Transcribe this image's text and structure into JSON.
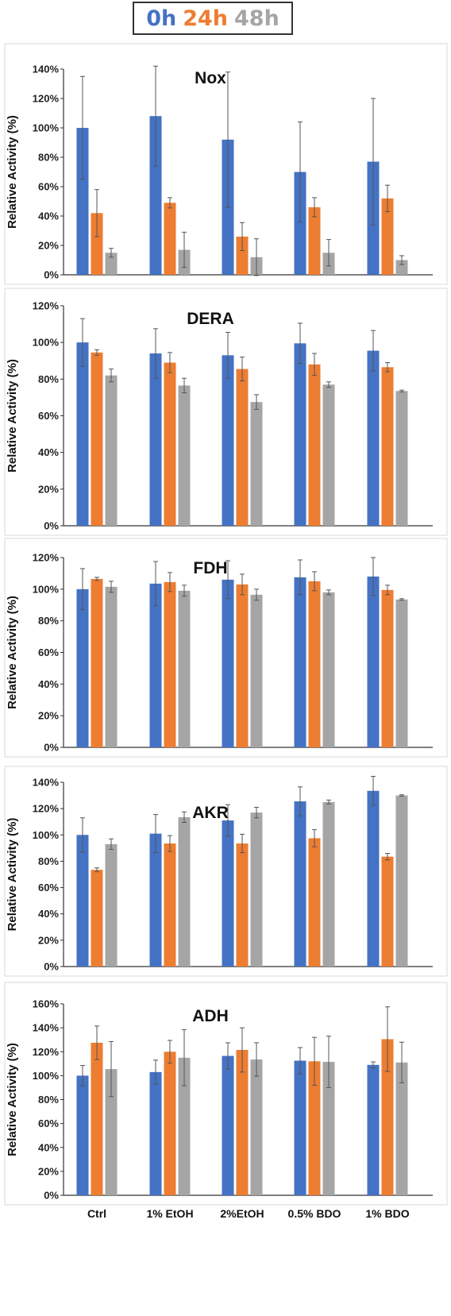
{
  "legend": [
    {
      "label": "0h",
      "color": "#4472C4"
    },
    {
      "label": "24h",
      "color": "#ED7D31"
    },
    {
      "label": "48h",
      "color": "#A5A5A5"
    }
  ],
  "chart_data": [
    {
      "type": "bar",
      "title": "Nox",
      "ylabel": "Relative Activity (%)",
      "categories": [
        "Ctrl",
        "1% EtOH",
        "2%EtOH",
        "0.5% BDO",
        "1% BDO"
      ],
      "ylim": [
        0,
        140
      ],
      "yticks": [
        "0%",
        "20%",
        "40%",
        "60%",
        "80%",
        "100%",
        "120%",
        "140%"
      ],
      "series": [
        {
          "name": "0h",
          "values": [
            100,
            108,
            92,
            70,
            77
          ],
          "errors": [
            35,
            34,
            46,
            34,
            43
          ]
        },
        {
          "name": "24h",
          "values": [
            42,
            49,
            26,
            46,
            52
          ],
          "errors": [
            16,
            3.5,
            9.5,
            6.5,
            9
          ]
        },
        {
          "name": "48h",
          "values": [
            15,
            17,
            12,
            15,
            10
          ],
          "errors": [
            3,
            12,
            12.5,
            9,
            3
          ]
        }
      ]
    },
    {
      "type": "bar",
      "title": "DERA",
      "ylabel": "Relative Activity (%)",
      "categories": [
        "Ctrl",
        "1% EtOH",
        "2%EtOH",
        "0.5% BDO",
        "1% BDO"
      ],
      "ylim": [
        0,
        120
      ],
      "yticks": [
        "0%",
        "20%",
        "40%",
        "60%",
        "80%",
        "100%",
        "120%"
      ],
      "series": [
        {
          "name": "0h",
          "values": [
            100,
            94,
            93,
            99.5,
            95.5
          ],
          "errors": [
            13,
            13.5,
            12.5,
            11,
            11
          ]
        },
        {
          "name": "24h",
          "values": [
            94.5,
            89,
            85.5,
            88,
            86.5
          ],
          "errors": [
            1.5,
            5.5,
            6.5,
            6,
            2.5
          ]
        },
        {
          "name": "48h",
          "values": [
            82,
            76.5,
            67.5,
            77,
            73.5
          ],
          "errors": [
            3.5,
            4,
            4,
            1.5,
            0.5
          ]
        }
      ]
    },
    {
      "type": "bar",
      "title": "FDH",
      "ylabel": "Relative Activity (%)",
      "categories": [
        "Ctrl",
        "1% EtOH",
        "2%EtOH",
        "0.5% BDO",
        "1% BDO"
      ],
      "ylim": [
        0,
        120
      ],
      "yticks": [
        "0%",
        "20%",
        "40%",
        "60%",
        "80%",
        "100%",
        "120%"
      ],
      "series": [
        {
          "name": "0h",
          "values": [
            100,
            103.5,
            106,
            107.5,
            108
          ],
          "errors": [
            13,
            14,
            12,
            11,
            12
          ]
        },
        {
          "name": "24h",
          "values": [
            106.5,
            104.5,
            103,
            105,
            99.5
          ],
          "errors": [
            1,
            6,
            6.5,
            6,
            3
          ]
        },
        {
          "name": "48h",
          "values": [
            101.5,
            99,
            96.5,
            98,
            93.5
          ],
          "errors": [
            3.5,
            3.5,
            3.5,
            1.5,
            0.5
          ]
        }
      ]
    },
    {
      "type": "bar",
      "title": "AKR",
      "ylabel": "Relative Activity (%)",
      "categories": [
        "Ctrl",
        "1% EtOH",
        "2%EtOH",
        "0.5% BDO",
        "1% BDO"
      ],
      "ylim": [
        0,
        140
      ],
      "yticks": [
        "0%",
        "20%",
        "40%",
        "60%",
        "80%",
        "100%",
        "120%",
        "140%"
      ],
      "series": [
        {
          "name": "0h",
          "values": [
            100,
            101,
            111,
            125.5,
            133.5
          ],
          "errors": [
            13,
            14.5,
            12,
            11,
            11
          ]
        },
        {
          "name": "24h",
          "values": [
            73.5,
            93.5,
            93.5,
            97.5,
            83.5
          ],
          "errors": [
            1.5,
            6,
            7,
            6.5,
            2.5
          ]
        },
        {
          "name": "48h",
          "values": [
            93,
            113.5,
            117,
            125,
            130
          ],
          "errors": [
            4,
            4,
            4,
            1.5,
            0.5
          ]
        }
      ]
    },
    {
      "type": "bar",
      "title": "ADH",
      "ylabel": "Relative Activity (%)",
      "categories": [
        "Ctrl",
        "1% EtOH",
        "2%EtOH",
        "0.5% BDO",
        "1% BDO"
      ],
      "ylim": [
        0,
        160
      ],
      "yticks": [
        "0%",
        "20%",
        "40%",
        "60%",
        "80%",
        "100%",
        "120%",
        "140%",
        "160%"
      ],
      "series": [
        {
          "name": "0h",
          "values": [
            100,
            103,
            116.5,
            112.5,
            109
          ],
          "errors": [
            8.5,
            10,
            11,
            11,
            2.5
          ]
        },
        {
          "name": "24h",
          "values": [
            127.5,
            120,
            121.5,
            112,
            130.5
          ],
          "errors": [
            14,
            9.5,
            18.5,
            20,
            27
          ]
        },
        {
          "name": "48h",
          "values": [
            105.5,
            115,
            113.5,
            111.5,
            111
          ],
          "errors": [
            23,
            23.5,
            14,
            21.5,
            17
          ]
        }
      ]
    }
  ]
}
